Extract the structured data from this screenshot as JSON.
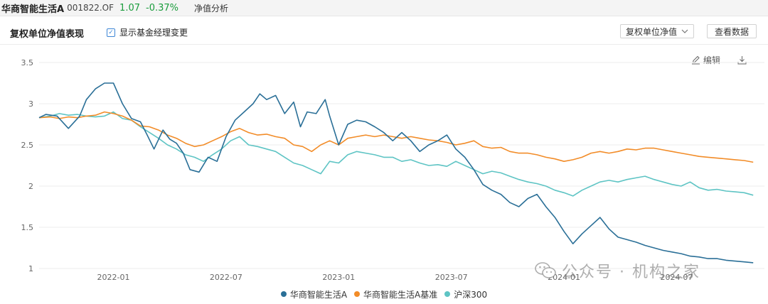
{
  "topbar": {
    "fund_name": "华商智能生活A",
    "fund_code": "001822.OF",
    "nav": "1.07",
    "change": "-0.37%",
    "tab": "净值分析"
  },
  "panel": {
    "title": "复权单位净值表现",
    "show_manager_change": "显示基金经理变更",
    "select_value": "复权单位净值",
    "view_data_button": "查看数据"
  },
  "tools": {
    "edit": "编辑",
    "edit_icon": "edit-icon",
    "download_icon": "download-icon"
  },
  "watermark": {
    "text": "公众号 · 机构之家",
    "icon": "wechat-icon"
  },
  "colors": {
    "fund": "#2a6f97",
    "benchmark": "#f28c28",
    "csi300": "#5ec4c4",
    "positive": "#1a9c3c"
  },
  "chart_data": {
    "type": "line",
    "x_ticks": [
      "2022-01",
      "2022-07",
      "2023-01",
      "2023-07",
      "2024-01",
      "2024-07"
    ],
    "x_tick_positions": [
      2022.0,
      2022.5,
      2023.0,
      2023.5,
      2024.0,
      2024.5
    ],
    "xlim": [
      2021.67,
      2024.89
    ],
    "ylim": [
      1,
      3.5
    ],
    "y_ticks": [
      "1",
      "1.5",
      "2",
      "2.5",
      "3",
      "3.5"
    ],
    "y_tick_values": [
      1,
      1.5,
      2,
      2.5,
      3,
      3.5
    ],
    "grid": true,
    "legend_position": "bottom",
    "series": [
      {
        "name": "华商智能生活A",
        "color": "#2a6f97",
        "points": [
          [
            2021.67,
            2.83
          ],
          [
            2021.7,
            2.87
          ],
          [
            2021.75,
            2.85
          ],
          [
            2021.8,
            2.7
          ],
          [
            2021.85,
            2.85
          ],
          [
            2021.88,
            3.05
          ],
          [
            2021.92,
            3.18
          ],
          [
            2021.96,
            3.25
          ],
          [
            2022.0,
            3.25
          ],
          [
            2022.04,
            3.0
          ],
          [
            2022.08,
            2.82
          ],
          [
            2022.12,
            2.78
          ],
          [
            2022.15,
            2.62
          ],
          [
            2022.18,
            2.45
          ],
          [
            2022.22,
            2.68
          ],
          [
            2022.25,
            2.57
          ],
          [
            2022.28,
            2.52
          ],
          [
            2022.31,
            2.4
          ],
          [
            2022.34,
            2.2
          ],
          [
            2022.38,
            2.17
          ],
          [
            2022.42,
            2.35
          ],
          [
            2022.46,
            2.3
          ],
          [
            2022.5,
            2.6
          ],
          [
            2022.54,
            2.8
          ],
          [
            2022.58,
            2.9
          ],
          [
            2022.62,
            3.0
          ],
          [
            2022.65,
            3.12
          ],
          [
            2022.68,
            3.05
          ],
          [
            2022.72,
            3.1
          ],
          [
            2022.76,
            2.88
          ],
          [
            2022.8,
            3.02
          ],
          [
            2022.83,
            2.72
          ],
          [
            2022.86,
            2.9
          ],
          [
            2022.9,
            2.88
          ],
          [
            2022.94,
            3.05
          ],
          [
            2022.96,
            2.85
          ],
          [
            2023.0,
            2.5
          ],
          [
            2023.04,
            2.75
          ],
          [
            2023.08,
            2.8
          ],
          [
            2023.12,
            2.78
          ],
          [
            2023.16,
            2.72
          ],
          [
            2023.2,
            2.65
          ],
          [
            2023.24,
            2.55
          ],
          [
            2023.28,
            2.65
          ],
          [
            2023.32,
            2.55
          ],
          [
            2023.36,
            2.42
          ],
          [
            2023.4,
            2.5
          ],
          [
            2023.44,
            2.55
          ],
          [
            2023.48,
            2.62
          ],
          [
            2023.52,
            2.45
          ],
          [
            2023.56,
            2.35
          ],
          [
            2023.6,
            2.2
          ],
          [
            2023.64,
            2.02
          ],
          [
            2023.68,
            1.95
          ],
          [
            2023.72,
            1.9
          ],
          [
            2023.76,
            1.8
          ],
          [
            2023.8,
            1.75
          ],
          [
            2023.84,
            1.85
          ],
          [
            2023.88,
            1.9
          ],
          [
            2023.92,
            1.75
          ],
          [
            2023.96,
            1.62
          ],
          [
            2024.0,
            1.45
          ],
          [
            2024.04,
            1.3
          ],
          [
            2024.08,
            1.42
          ],
          [
            2024.12,
            1.52
          ],
          [
            2024.16,
            1.62
          ],
          [
            2024.2,
            1.48
          ],
          [
            2024.24,
            1.38
          ],
          [
            2024.28,
            1.35
          ],
          [
            2024.32,
            1.32
          ],
          [
            2024.36,
            1.28
          ],
          [
            2024.4,
            1.25
          ],
          [
            2024.44,
            1.22
          ],
          [
            2024.48,
            1.2
          ],
          [
            2024.52,
            1.18
          ],
          [
            2024.56,
            1.15
          ],
          [
            2024.6,
            1.14
          ],
          [
            2024.64,
            1.12
          ],
          [
            2024.68,
            1.12
          ],
          [
            2024.72,
            1.1
          ],
          [
            2024.76,
            1.09
          ],
          [
            2024.8,
            1.08
          ],
          [
            2024.84,
            1.07
          ]
        ]
      },
      {
        "name": "华商智能生活A基准",
        "color": "#f28c28",
        "points": [
          [
            2021.67,
            2.83
          ],
          [
            2021.72,
            2.84
          ],
          [
            2021.76,
            2.82
          ],
          [
            2021.8,
            2.84
          ],
          [
            2021.84,
            2.83
          ],
          [
            2021.88,
            2.85
          ],
          [
            2021.92,
            2.86
          ],
          [
            2021.96,
            2.9
          ],
          [
            2022.0,
            2.88
          ],
          [
            2022.04,
            2.85
          ],
          [
            2022.08,
            2.8
          ],
          [
            2022.12,
            2.73
          ],
          [
            2022.16,
            2.72
          ],
          [
            2022.2,
            2.68
          ],
          [
            2022.24,
            2.62
          ],
          [
            2022.28,
            2.58
          ],
          [
            2022.32,
            2.52
          ],
          [
            2022.36,
            2.48
          ],
          [
            2022.4,
            2.5
          ],
          [
            2022.44,
            2.55
          ],
          [
            2022.48,
            2.6
          ],
          [
            2022.52,
            2.66
          ],
          [
            2022.56,
            2.7
          ],
          [
            2022.6,
            2.65
          ],
          [
            2022.64,
            2.62
          ],
          [
            2022.68,
            2.63
          ],
          [
            2022.72,
            2.6
          ],
          [
            2022.76,
            2.58
          ],
          [
            2022.8,
            2.5
          ],
          [
            2022.84,
            2.48
          ],
          [
            2022.88,
            2.42
          ],
          [
            2022.92,
            2.5
          ],
          [
            2022.96,
            2.55
          ],
          [
            2023.0,
            2.5
          ],
          [
            2023.04,
            2.58
          ],
          [
            2023.08,
            2.6
          ],
          [
            2023.12,
            2.62
          ],
          [
            2023.16,
            2.6
          ],
          [
            2023.2,
            2.62
          ],
          [
            2023.24,
            2.6
          ],
          [
            2023.28,
            2.58
          ],
          [
            2023.32,
            2.6
          ],
          [
            2023.36,
            2.58
          ],
          [
            2023.4,
            2.56
          ],
          [
            2023.44,
            2.55
          ],
          [
            2023.48,
            2.53
          ],
          [
            2023.52,
            2.5
          ],
          [
            2023.56,
            2.52
          ],
          [
            2023.6,
            2.55
          ],
          [
            2023.64,
            2.48
          ],
          [
            2023.68,
            2.46
          ],
          [
            2023.72,
            2.47
          ],
          [
            2023.76,
            2.42
          ],
          [
            2023.8,
            2.4
          ],
          [
            2023.84,
            2.4
          ],
          [
            2023.88,
            2.38
          ],
          [
            2023.92,
            2.35
          ],
          [
            2023.96,
            2.33
          ],
          [
            2024.0,
            2.3
          ],
          [
            2024.04,
            2.32
          ],
          [
            2024.08,
            2.35
          ],
          [
            2024.12,
            2.4
          ],
          [
            2024.16,
            2.42
          ],
          [
            2024.2,
            2.4
          ],
          [
            2024.24,
            2.42
          ],
          [
            2024.28,
            2.45
          ],
          [
            2024.32,
            2.44
          ],
          [
            2024.36,
            2.46
          ],
          [
            2024.4,
            2.46
          ],
          [
            2024.44,
            2.44
          ],
          [
            2024.48,
            2.42
          ],
          [
            2024.52,
            2.4
          ],
          [
            2024.56,
            2.38
          ],
          [
            2024.6,
            2.36
          ],
          [
            2024.64,
            2.35
          ],
          [
            2024.68,
            2.34
          ],
          [
            2024.72,
            2.33
          ],
          [
            2024.76,
            2.32
          ],
          [
            2024.8,
            2.31
          ],
          [
            2024.84,
            2.29
          ]
        ]
      },
      {
        "name": "沪深300",
        "color": "#5ec4c4",
        "points": [
          [
            2021.67,
            2.83
          ],
          [
            2021.72,
            2.85
          ],
          [
            2021.76,
            2.88
          ],
          [
            2021.8,
            2.86
          ],
          [
            2021.84,
            2.87
          ],
          [
            2021.88,
            2.85
          ],
          [
            2021.92,
            2.84
          ],
          [
            2021.96,
            2.85
          ],
          [
            2022.0,
            2.9
          ],
          [
            2022.04,
            2.82
          ],
          [
            2022.08,
            2.8
          ],
          [
            2022.12,
            2.72
          ],
          [
            2022.16,
            2.65
          ],
          [
            2022.2,
            2.58
          ],
          [
            2022.24,
            2.5
          ],
          [
            2022.28,
            2.45
          ],
          [
            2022.32,
            2.38
          ],
          [
            2022.36,
            2.35
          ],
          [
            2022.4,
            2.3
          ],
          [
            2022.44,
            2.38
          ],
          [
            2022.48,
            2.45
          ],
          [
            2022.52,
            2.55
          ],
          [
            2022.56,
            2.6
          ],
          [
            2022.6,
            2.5
          ],
          [
            2022.64,
            2.48
          ],
          [
            2022.68,
            2.45
          ],
          [
            2022.72,
            2.42
          ],
          [
            2022.76,
            2.35
          ],
          [
            2022.8,
            2.28
          ],
          [
            2022.84,
            2.25
          ],
          [
            2022.88,
            2.2
          ],
          [
            2022.92,
            2.15
          ],
          [
            2022.96,
            2.3
          ],
          [
            2023.0,
            2.28
          ],
          [
            2023.04,
            2.38
          ],
          [
            2023.08,
            2.42
          ],
          [
            2023.12,
            2.4
          ],
          [
            2023.16,
            2.38
          ],
          [
            2023.2,
            2.35
          ],
          [
            2023.24,
            2.35
          ],
          [
            2023.28,
            2.3
          ],
          [
            2023.32,
            2.32
          ],
          [
            2023.36,
            2.28
          ],
          [
            2023.4,
            2.25
          ],
          [
            2023.44,
            2.26
          ],
          [
            2023.48,
            2.24
          ],
          [
            2023.52,
            2.3
          ],
          [
            2023.56,
            2.25
          ],
          [
            2023.6,
            2.2
          ],
          [
            2023.64,
            2.15
          ],
          [
            2023.68,
            2.18
          ],
          [
            2023.72,
            2.16
          ],
          [
            2023.76,
            2.12
          ],
          [
            2023.8,
            2.08
          ],
          [
            2023.84,
            2.05
          ],
          [
            2023.88,
            2.03
          ],
          [
            2023.92,
            2.0
          ],
          [
            2023.96,
            1.95
          ],
          [
            2024.0,
            1.92
          ],
          [
            2024.04,
            1.88
          ],
          [
            2024.08,
            1.95
          ],
          [
            2024.12,
            2.0
          ],
          [
            2024.16,
            2.05
          ],
          [
            2024.2,
            2.07
          ],
          [
            2024.24,
            2.05
          ],
          [
            2024.28,
            2.08
          ],
          [
            2024.32,
            2.1
          ],
          [
            2024.36,
            2.12
          ],
          [
            2024.4,
            2.08
          ],
          [
            2024.44,
            2.05
          ],
          [
            2024.48,
            2.02
          ],
          [
            2024.52,
            2.0
          ],
          [
            2024.56,
            2.05
          ],
          [
            2024.6,
            1.98
          ],
          [
            2024.64,
            1.95
          ],
          [
            2024.68,
            1.96
          ],
          [
            2024.72,
            1.94
          ],
          [
            2024.76,
            1.93
          ],
          [
            2024.8,
            1.92
          ],
          [
            2024.84,
            1.89
          ]
        ]
      }
    ]
  }
}
